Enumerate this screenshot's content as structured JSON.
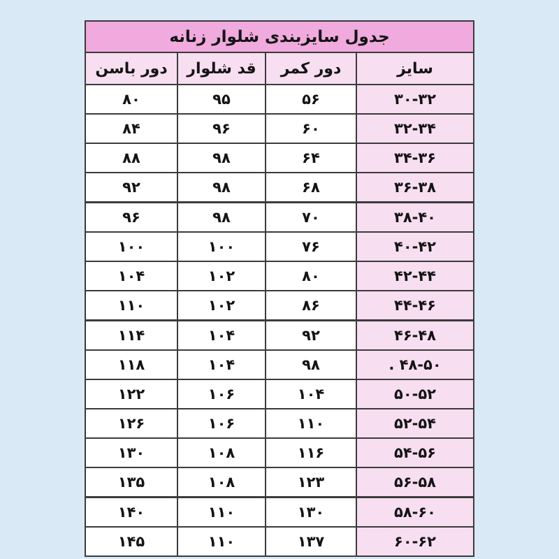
{
  "page": {
    "background_color": "#d9e9f6",
    "accent_colors": {
      "title_bar_pink": "#f0aade",
      "light_pink": "#f7def0",
      "border": "#3b3b3b",
      "cell_white": "#ffffff"
    }
  },
  "table": {
    "title": "جدول سایزبندی شلوار زنانه",
    "columns": [
      {
        "key": "hip",
        "label": "دور باسن"
      },
      {
        "key": "length",
        "label": "قد شلوار"
      },
      {
        "key": "waist",
        "label": "دور کمر"
      },
      {
        "key": "size",
        "label": "سایز"
      }
    ],
    "rows": [
      {
        "hip": "۸۰",
        "length": "۹۵",
        "waist": "۵۶",
        "size": "۳۰-۳۲"
      },
      {
        "hip": "۸۴",
        "length": "۹۶",
        "waist": "۶۰",
        "size": "۳۲-۳۴"
      },
      {
        "hip": "۸۸",
        "length": "۹۸",
        "waist": "۶۴",
        "size": "۳۴-۳۶"
      },
      {
        "hip": "۹۲",
        "length": "۹۸",
        "waist": "۶۸",
        "size": "۳۶-۳۸"
      },
      {
        "hip": "۹۶",
        "length": "۹۸",
        "waist": "۷۰",
        "size": "۳۸-۴۰"
      },
      {
        "hip": "۱۰۰",
        "length": "۱۰۰",
        "waist": "۷۶",
        "size": "۴۰-۴۲"
      },
      {
        "hip": "۱۰۴",
        "length": "۱۰۲",
        "waist": "۸۰",
        "size": "۴۲-۴۴"
      },
      {
        "hip": "۱۱۰",
        "length": "۱۰۲",
        "waist": "۸۶",
        "size": "۴۴-۴۶"
      },
      {
        "hip": "۱۱۴",
        "length": "۱۰۴",
        "waist": "۹۲",
        "size": "۴۶-۴۸"
      },
      {
        "hip": "۱۱۸",
        "length": "۱۰۴",
        "waist": "۹۸",
        "size": ". ۴۸-۵۰"
      },
      {
        "hip": "۱۲۲",
        "length": "۱۰۶",
        "waist": "۱۰۴",
        "size": "۵۰-۵۲"
      },
      {
        "hip": "۱۲۶",
        "length": "۱۰۶",
        "waist": "۱۱۰",
        "size": "۵۲-۵۴"
      },
      {
        "hip": "۱۳۰",
        "length": "۱۰۸",
        "waist": "۱۱۶",
        "size": "۵۴-۵۶"
      },
      {
        "hip": "۱۳۵",
        "length": "۱۰۸",
        "waist": "۱۲۳",
        "size": "۵۶-۵۸"
      },
      {
        "hip": "۱۴۰",
        "length": "۱۱۰",
        "waist": "۱۳۰",
        "size": "۵۸-۶۰"
      },
      {
        "hip": "۱۴۵",
        "length": "۱۱۰",
        "waist": "۱۳۷",
        "size": "۶۰-۶۲"
      }
    ]
  },
  "chart_data": {
    "type": "table",
    "title": "جدول سایزبندی شلوار زنانه",
    "columns": [
      "سایز",
      "دور کمر",
      "قد شلوار",
      "دور باسن"
    ],
    "rows": [
      {
        "size": "30-32",
        "waist": 56,
        "length": 95,
        "hip": 80
      },
      {
        "size": "32-34",
        "waist": 60,
        "length": 96,
        "hip": 84
      },
      {
        "size": "34-36",
        "waist": 64,
        "length": 98,
        "hip": 88
      },
      {
        "size": "36-38",
        "waist": 68,
        "length": 98,
        "hip": 92
      },
      {
        "size": "38-40",
        "waist": 70,
        "length": 98,
        "hip": 96
      },
      {
        "size": "40-42",
        "waist": 76,
        "length": 100,
        "hip": 100
      },
      {
        "size": "42-44",
        "waist": 80,
        "length": 102,
        "hip": 104
      },
      {
        "size": "44-46",
        "waist": 86,
        "length": 102,
        "hip": 110
      },
      {
        "size": "46-48",
        "waist": 92,
        "length": 104,
        "hip": 114
      },
      {
        "size": "48-50",
        "waist": 98,
        "length": 104,
        "hip": 118
      },
      {
        "size": "50-52",
        "waist": 104,
        "length": 106,
        "hip": 122
      },
      {
        "size": "52-54",
        "waist": 110,
        "length": 106,
        "hip": 126
      },
      {
        "size": "54-56",
        "waist": 116,
        "length": 108,
        "hip": 130
      },
      {
        "size": "56-58",
        "waist": 123,
        "length": 108,
        "hip": 135
      },
      {
        "size": "58-60",
        "waist": 130,
        "length": 110,
        "hip": 140
      },
      {
        "size": "60-62",
        "waist": 137,
        "length": 110,
        "hip": 145
      }
    ]
  }
}
